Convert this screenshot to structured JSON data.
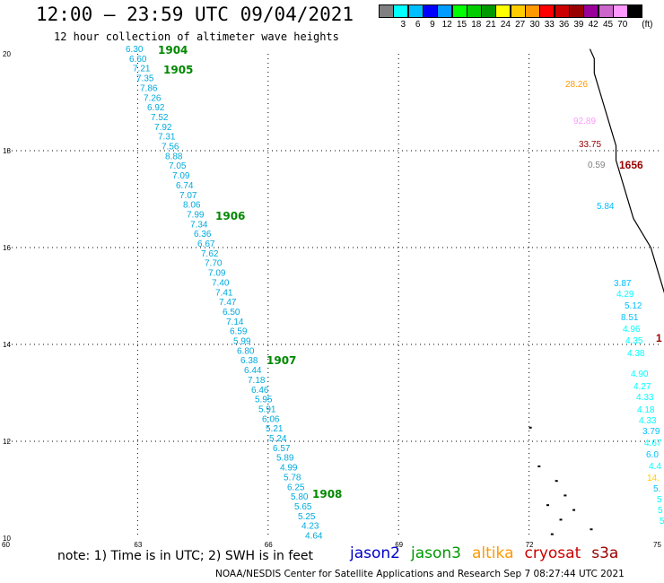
{
  "title": "12:00 – 23:59 UTC 09/04/2021",
  "subtitle": "12 hour collection of altimeter wave heights",
  "legend": {
    "unit": "(ft)",
    "swatches": [
      {
        "color": "#808080",
        "label": ""
      },
      {
        "color": "#00ffff",
        "label": "3"
      },
      {
        "color": "#00bfff",
        "label": "6"
      },
      {
        "color": "#0000ff",
        "label": "9"
      },
      {
        "color": "#009cff",
        "label": "12"
      },
      {
        "color": "#00ff00",
        "label": "15"
      },
      {
        "color": "#00cc00",
        "label": "18"
      },
      {
        "color": "#009900",
        "label": "21"
      },
      {
        "color": "#ffff00",
        "label": "24"
      },
      {
        "color": "#ffcc00",
        "label": "27"
      },
      {
        "color": "#ff9900",
        "label": "30"
      },
      {
        "color": "#ff0000",
        "label": "33"
      },
      {
        "color": "#cc0000",
        "label": "36"
      },
      {
        "color": "#990000",
        "label": "39"
      },
      {
        "color": "#990099",
        "label": "42"
      },
      {
        "color": "#cc66cc",
        "label": "45"
      },
      {
        "color": "#ff99ff",
        "label": "70"
      },
      {
        "color": "#000000",
        "label": ""
      }
    ]
  },
  "axes": {
    "lon_labels": [
      "60",
      "63",
      "66",
      "69",
      "72",
      "75"
    ],
    "lat_labels": [
      "20",
      "18",
      "16",
      "14",
      "12",
      "10"
    ]
  },
  "track_values": [
    "6.30",
    "6.60",
    "7.21",
    "7.35",
    "7.86",
    "7.26",
    "6.92",
    "7.52",
    "7.92",
    "7.31",
    "7.56",
    "8.88",
    "7.05",
    "7.09",
    "6.74",
    "7.07",
    "8.06",
    "7.99",
    "7.34",
    "6.36",
    "6.67",
    "7.62",
    "7.70",
    "7.09",
    "7.40",
    "7.41",
    "7.47",
    "6.50",
    "7.14",
    "6.59",
    "5.99",
    "6.80",
    "6.38",
    "6.44",
    "7.18",
    "6.46",
    "5.95",
    "5.91",
    "6.06",
    "5.21",
    "5.24",
    "6.57",
    "5.89",
    "4.99",
    "5.78",
    "6.25",
    "5.80",
    "5.65",
    "5.25",
    "4.23",
    "4.64"
  ],
  "time_marks": [
    "1904",
    "1905",
    "1906",
    "1907",
    "1908"
  ],
  "coast_values": [
    {
      "text": "28.26",
      "color": "#ff9900"
    },
    {
      "text": "92.89",
      "color": "#ff99ff"
    },
    {
      "text": "33.75",
      "color": "#990000"
    },
    {
      "text": "0.59",
      "color": "#808080"
    },
    {
      "text": "1656",
      "color": "#990000"
    },
    {
      "text": "5.84",
      "color": "#00bfff"
    },
    {
      "text": "3.87",
      "color": "#00bfff"
    },
    {
      "text": "4.29",
      "color": "#00ffff"
    },
    {
      "text": "5.12",
      "color": "#00bfff"
    },
    {
      "text": "8.51",
      "color": "#00bfff"
    },
    {
      "text": "4.96",
      "color": "#00ffff"
    },
    {
      "text": "4.35",
      "color": "#00ffff"
    },
    {
      "text": "1",
      "color": "#990000"
    },
    {
      "text": "4.38",
      "color": "#00ffff"
    },
    {
      "text": "4.90",
      "color": "#00ffff"
    },
    {
      "text": "4.27",
      "color": "#00ffff"
    },
    {
      "text": "4.33",
      "color": "#00ffff"
    },
    {
      "text": "4.18",
      "color": "#00ffff"
    },
    {
      "text": "4.33",
      "color": "#00ffff"
    },
    {
      "text": "3.79",
      "color": "#00bfff"
    },
    {
      "text": "4.67",
      "color": "#00ffff"
    },
    {
      "text": "6.0",
      "color": "#00bfff"
    },
    {
      "text": "4.4",
      "color": "#00ffff"
    },
    {
      "text": "14.",
      "color": "#ffcc00"
    },
    {
      "text": "5.",
      "color": "#00bfff"
    },
    {
      "text": "5",
      "color": "#00ffff"
    },
    {
      "text": "5",
      "color": "#00ffff"
    },
    {
      "text": "5",
      "color": "#00ffff"
    }
  ],
  "note": "note: 1) Time is in UTC; 2) SWH is in feet",
  "satellites": [
    {
      "name": "jason2",
      "color": "#0000cc"
    },
    {
      "name": "jason3",
      "color": "#009900"
    },
    {
      "name": "altika",
      "color": "#ff9900"
    },
    {
      "name": "cryosat",
      "color": "#cc0000"
    },
    {
      "name": "s3a",
      "color": "#990000"
    }
  ],
  "credit": "NOAA/NESDIS Center for Satellite Applications and Research    Sep  7 08:27:44 UTC 2021"
}
